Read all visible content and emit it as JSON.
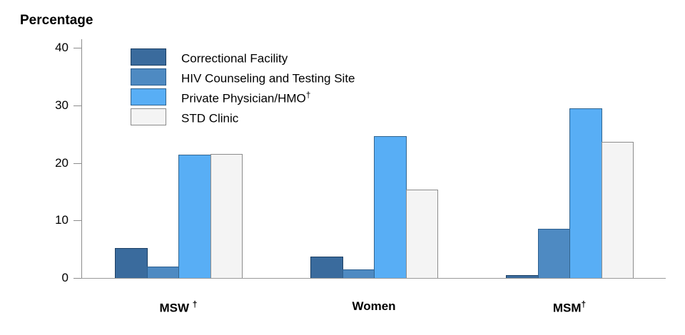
{
  "chart_data": {
    "type": "bar",
    "title": "Percentage",
    "ylabel": "Percentage",
    "xlabel": "",
    "ylim": [
      0,
      40
    ],
    "yticks": [
      0,
      10,
      20,
      30,
      40
    ],
    "grid": false,
    "legend_position": "upper-left-inside",
    "axis_color": "#8c8c8c",
    "text_color": "#000000",
    "categories": [
      {
        "label": "MSW ",
        "sup": "†"
      },
      {
        "label": "Women",
        "sup": ""
      },
      {
        "label": "MSM",
        "sup": "†"
      }
    ],
    "series": [
      {
        "name": "Correctional Facility",
        "sup": "",
        "color": "#3a6b9d",
        "border": "#1c3f63",
        "values": [
          5.2,
          3.7,
          0.5
        ]
      },
      {
        "name": "HIV Counseling and Testing Site",
        "sup": "",
        "color": "#4e8ac2",
        "border": "#2c5e8e",
        "values": [
          2.0,
          1.5,
          8.6
        ]
      },
      {
        "name": "Private Physician/HMO",
        "sup": "†",
        "color": "#58aef5",
        "border": "#33658f",
        "values": [
          21.4,
          24.6,
          29.5
        ]
      },
      {
        "name": "STD Clinic",
        "sup": "",
        "color": "#f4f4f4",
        "border": "#8c8c8c",
        "values": [
          21.5,
          15.3,
          23.6
        ]
      }
    ]
  }
}
